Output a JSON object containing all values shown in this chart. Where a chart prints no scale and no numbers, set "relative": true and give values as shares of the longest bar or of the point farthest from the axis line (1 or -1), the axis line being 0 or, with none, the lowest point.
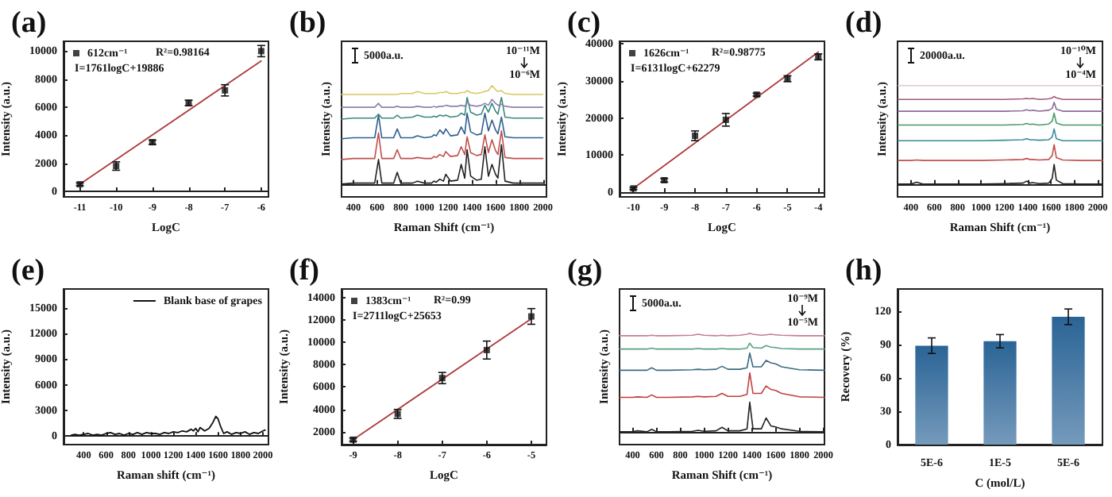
{
  "chart_data": [
    {
      "type": "scatter",
      "title": "(a)",
      "xlabel": "LogC",
      "ylabel": "Intensity (a.u.)",
      "x": [
        -11,
        -10,
        -9,
        -8,
        -7,
        -6
      ],
      "xlim": [
        -11.45,
        -5.8
      ],
      "xticks": [
        -11,
        -10,
        -9,
        -8,
        -7,
        -6
      ],
      "ylim": [
        -400,
        10700
      ],
      "yticks": [
        0,
        2000,
        4000,
        6000,
        8000,
        10000
      ],
      "legend": "top left",
      "marker": "square",
      "annotations": [
        "R²=0.98164",
        "I=1761logC+19886"
      ],
      "series": [
        {
          "name": "612cm⁻¹",
          "color": "#111111",
          "values": [
            500,
            1800,
            3500,
            6300,
            7200,
            10000
          ],
          "errors": [
            100,
            300,
            150,
            200,
            400,
            400
          ]
        },
        {
          "type": "line",
          "marker": "none",
          "color": "#b03a3a",
          "x": [
            -11,
            -6
          ],
          "values": [
            500,
            9300
          ]
        }
      ]
    },
    {
      "type": "line",
      "title": "(b)",
      "xlabel": "Raman Shift (cm⁻¹)",
      "ylabel": "Intensity (a.u.)",
      "relative": true,
      "xlim": [
        300,
        2030
      ],
      "xticks": [
        400,
        600,
        800,
        1000,
        1200,
        1400,
        1600,
        1800,
        2000
      ],
      "annotations": [
        "5000a.u.",
        "10⁻¹¹M",
        "10⁻⁶M"
      ],
      "x": [
        300,
        400,
        500,
        580,
        612,
        640,
        740,
        770,
        800,
        900,
        940,
        1000,
        1060,
        1080,
        1100,
        1130,
        1160,
        1180,
        1220,
        1280,
        1310,
        1340,
        1360,
        1390,
        1440,
        1480,
        1510,
        1540,
        1570,
        1600,
        1620,
        1650,
        1680,
        1750,
        1850,
        2000
      ],
      "series": [
        {
          "color": "#222222",
          "values": [
            0,
            0.01,
            0.01,
            0.01,
            0.25,
            0.01,
            0.01,
            0.12,
            0.01,
            0.01,
            0.03,
            0.01,
            0.01,
            0.03,
            0.02,
            0.05,
            0.03,
            0.1,
            0.03,
            0.04,
            0.2,
            0.06,
            0.35,
            0.08,
            0.04,
            0.05,
            0.38,
            0.08,
            0.2,
            0.1,
            0.06,
            0.4,
            0.03,
            0.01,
            0.01,
            0.01
          ]
        },
        {
          "color": "#c0504d",
          "values": [
            0.25,
            0.26,
            0.26,
            0.26,
            0.52,
            0.26,
            0.26,
            0.35,
            0.26,
            0.26,
            0.27,
            0.26,
            0.26,
            0.28,
            0.27,
            0.3,
            0.28,
            0.33,
            0.28,
            0.29,
            0.38,
            0.3,
            0.48,
            0.32,
            0.29,
            0.3,
            0.5,
            0.32,
            0.45,
            0.34,
            0.3,
            0.54,
            0.27,
            0.26,
            0.26,
            0.26
          ]
        },
        {
          "color": "#2f5f8f",
          "values": [
            0.46,
            0.47,
            0.47,
            0.47,
            0.7,
            0.47,
            0.47,
            0.56,
            0.47,
            0.47,
            0.49,
            0.47,
            0.48,
            0.5,
            0.49,
            0.55,
            0.51,
            0.56,
            0.49,
            0.5,
            0.58,
            0.51,
            0.72,
            0.53,
            0.5,
            0.51,
            0.72,
            0.54,
            0.65,
            0.55,
            0.51,
            0.68,
            0.48,
            0.47,
            0.47,
            0.47
          ]
        },
        {
          "color": "#3a8a80",
          "values": [
            0.66,
            0.67,
            0.67,
            0.67,
            0.71,
            0.67,
            0.67,
            0.7,
            0.67,
            0.68,
            0.7,
            0.68,
            0.68,
            0.69,
            0.68,
            0.7,
            0.69,
            0.7,
            0.68,
            0.69,
            0.72,
            0.7,
            0.88,
            0.73,
            0.7,
            0.71,
            0.8,
            0.73,
            0.82,
            0.74,
            0.71,
            0.88,
            0.68,
            0.67,
            0.67,
            0.67
          ]
        },
        {
          "color": "#9080b0",
          "values": [
            0.78,
            0.78,
            0.78,
            0.78,
            0.82,
            0.78,
            0.78,
            0.79,
            0.78,
            0.78,
            0.79,
            0.78,
            0.78,
            0.79,
            0.78,
            0.79,
            0.79,
            0.8,
            0.79,
            0.79,
            0.8,
            0.79,
            0.83,
            0.8,
            0.79,
            0.8,
            0.82,
            0.8,
            0.86,
            0.82,
            0.8,
            0.81,
            0.79,
            0.78,
            0.78,
            0.78
          ]
        },
        {
          "color": "#d8c860",
          "values": [
            0.91,
            0.91,
            0.91,
            0.91,
            0.91,
            0.91,
            0.91,
            0.91,
            0.92,
            0.92,
            0.94,
            0.92,
            0.92,
            0.92,
            0.92,
            0.93,
            0.93,
            0.94,
            0.92,
            0.92,
            0.93,
            0.93,
            0.95,
            0.93,
            0.92,
            0.93,
            0.94,
            0.95,
            1,
            0.96,
            0.94,
            0.95,
            0.92,
            0.91,
            0.91,
            0.91
          ]
        }
      ]
    },
    {
      "type": "scatter",
      "title": "(c)",
      "xlabel": "LogC",
      "ylabel": "Intensity (a.u.)",
      "x": [
        -10,
        -9,
        -8,
        -7,
        -6,
        -5,
        -4
      ],
      "xlim": [
        -10.45,
        -3.8
      ],
      "xticks": [
        -10,
        -9,
        -8,
        -7,
        -6,
        -5,
        -4
      ],
      "ylim": [
        -1300,
        40700
      ],
      "yticks": [
        0,
        10000,
        20000,
        30000,
        40000
      ],
      "legend": "top left",
      "marker": "square",
      "annotations": [
        "R²=0.98775",
        "I=6131logC+62279"
      ],
      "series": [
        {
          "name": "1626cm⁻¹",
          "color": "#111111",
          "values": [
            1000,
            3200,
            15200,
            19500,
            26300,
            30600,
            36500
          ],
          "errors": [
            300,
            500,
            1300,
            1700,
            400,
            800,
            800
          ]
        },
        {
          "type": "line",
          "marker": "none",
          "color": "#b03a3a",
          "x": [
            -10,
            -4
          ],
          "values": [
            1000,
            37800
          ]
        }
      ]
    },
    {
      "type": "line",
      "title": "(d)",
      "xlabel": "Raman Shift (cm⁻¹)",
      "ylabel": "Intensity (a.u.)",
      "relative": true,
      "xlim": [
        285,
        2040
      ],
      "xticks": [
        400,
        600,
        800,
        1000,
        1200,
        1400,
        1600,
        1800,
        2000
      ],
      "annotations": [
        "20000a.u.",
        "10⁻¹⁰M",
        "10⁻⁴M"
      ],
      "x": [
        290,
        400,
        450,
        500,
        600,
        800,
        1000,
        1200,
        1360,
        1390,
        1420,
        1440,
        1500,
        1580,
        1610,
        1626,
        1645,
        1700,
        1850,
        2040
      ],
      "series": [
        {
          "color": "#222222",
          "values": [
            0,
            0,
            0.02,
            0,
            0,
            0,
            0,
            0.005,
            0.01,
            0.03,
            0.01,
            0.015,
            0.005,
            0.01,
            0.06,
            0.2,
            0.04,
            0.005,
            0,
            0
          ]
        },
        {
          "color": "#c0504d",
          "values": [
            0.24,
            0.24,
            0.245,
            0.24,
            0.24,
            0.24,
            0.24,
            0.245,
            0.25,
            0.26,
            0.25,
            0.25,
            0.245,
            0.25,
            0.29,
            0.4,
            0.27,
            0.245,
            0.24,
            0.24
          ]
        },
        {
          "color": "#3a8a9a",
          "values": [
            0.44,
            0.44,
            0.44,
            0.44,
            0.44,
            0.44,
            0.44,
            0.445,
            0.45,
            0.46,
            0.45,
            0.45,
            0.445,
            0.45,
            0.48,
            0.56,
            0.46,
            0.44,
            0.44,
            0.44
          ]
        },
        {
          "color": "#4a9a6a",
          "values": [
            0.6,
            0.6,
            0.6,
            0.6,
            0.6,
            0.6,
            0.6,
            0.6,
            0.605,
            0.615,
            0.605,
            0.61,
            0.6,
            0.61,
            0.64,
            0.72,
            0.62,
            0.6,
            0.6,
            0.6
          ]
        },
        {
          "color": "#8a6a9a",
          "values": [
            0.74,
            0.74,
            0.74,
            0.74,
            0.74,
            0.74,
            0.74,
            0.74,
            0.745,
            0.755,
            0.745,
            0.75,
            0.74,
            0.75,
            0.77,
            0.83,
            0.76,
            0.74,
            0.74,
            0.74
          ]
        },
        {
          "color": "#a05a7a",
          "values": [
            0.86,
            0.86,
            0.86,
            0.86,
            0.86,
            0.86,
            0.86,
            0.86,
            0.865,
            0.87,
            0.865,
            0.87,
            0.86,
            0.865,
            0.875,
            0.89,
            0.875,
            0.86,
            0.86,
            0.86
          ]
        },
        {
          "color": "#e0c8d0",
          "values": [
            1,
            1,
            1,
            1,
            1,
            1,
            1,
            1,
            1,
            1,
            1,
            1,
            1,
            1,
            1,
            1,
            1,
            1,
            1,
            1
          ]
        }
      ]
    },
    {
      "type": "line",
      "title": "(e)",
      "xlabel": "Raman shift (cm⁻¹)",
      "ylabel": "Intensity (a.u.)",
      "xlim": [
        220,
        2050
      ],
      "xticks": [
        400,
        600,
        800,
        1000,
        1200,
        1400,
        1600,
        1800,
        2000
      ],
      "ylim": [
        -1000,
        17200
      ],
      "yticks": [
        0,
        3000,
        6000,
        9000,
        12000,
        15000
      ],
      "legend": "top right",
      "x": [
        290,
        320,
        360,
        400,
        440,
        480,
        520,
        560,
        600,
        640,
        680,
        720,
        760,
        800,
        840,
        880,
        920,
        960,
        1000,
        1040,
        1080,
        1120,
        1160,
        1200,
        1240,
        1280,
        1320,
        1360,
        1380,
        1400,
        1420,
        1440,
        1480,
        1520,
        1550,
        1580,
        1600,
        1620,
        1650,
        1680,
        1720,
        1760,
        1800,
        1840,
        1880,
        1920,
        1960,
        2000,
        2020
      ],
      "series": [
        {
          "name": "Blank base of grapes",
          "color": "#111111",
          "values": [
            100,
            200,
            100,
            200,
            300,
            100,
            200,
            100,
            300,
            400,
            200,
            300,
            100,
            300,
            200,
            400,
            200,
            400,
            300,
            300,
            200,
            400,
            300,
            500,
            400,
            600,
            500,
            800,
            600,
            900,
            500,
            1000,
            600,
            900,
            1500,
            2300,
            2000,
            1200,
            300,
            500,
            200,
            400,
            300,
            500,
            200,
            400,
            300,
            600,
            700
          ]
        }
      ]
    },
    {
      "type": "scatter",
      "title": "(f)",
      "xlabel": "LogC",
      "ylabel": "Intensity (a.u.)",
      "x": [
        -9,
        -8,
        -7,
        -6,
        -5
      ],
      "xlim": [
        -9.26,
        -4.66
      ],
      "xticks": [
        -9,
        -8,
        -7,
        -6,
        -5
      ],
      "ylim": [
        860,
        14750
      ],
      "yticks": [
        2000,
        4000,
        6000,
        8000,
        10000,
        12000,
        14000
      ],
      "legend": "top left",
      "marker": "square",
      "annotations": [
        "R²=0.99",
        "I=2711logC+25653"
      ],
      "series": [
        {
          "name": "1383cm⁻¹",
          "color": "#111111",
          "values": [
            1300,
            3600,
            6800,
            9300,
            12300
          ],
          "errors": [
            150,
            400,
            500,
            800,
            700
          ]
        },
        {
          "type": "line",
          "marker": "none",
          "color": "#b03a3a",
          "x": [
            -9,
            -5
          ],
          "values": [
            1300,
            12100
          ]
        }
      ]
    },
    {
      "type": "line",
      "title": "(g)",
      "xlabel": "Raman Shift (cm⁻¹)",
      "ylabel": "Intensity (a.u.)",
      "relative": true,
      "xlim": [
        290,
        2010
      ],
      "xticks": [
        400,
        600,
        800,
        1000,
        1200,
        1400,
        1600,
        1800,
        2000
      ],
      "annotations": [
        "5000a.u.",
        "10⁻⁹M",
        "10⁻⁵M"
      ],
      "x": [
        290,
        400,
        440,
        520,
        560,
        600,
        700,
        900,
        950,
        1000,
        1100,
        1150,
        1200,
        1300,
        1360,
        1383,
        1410,
        1480,
        1520,
        1560,
        1600,
        1650,
        1800,
        2010
      ],
      "series": [
        {
          "color": "#222222",
          "values": [
            0,
            0,
            0.01,
            0,
            0.025,
            0,
            0,
            0.005,
            0.015,
            0.005,
            0.01,
            0.045,
            0.01,
            0.01,
            0.03,
            0.3,
            0.03,
            0.03,
            0.14,
            0.06,
            0.05,
            0.03,
            0.005,
            0
          ]
        },
        {
          "color": "#c04040",
          "values": [
            0.35,
            0.35,
            0.355,
            0.35,
            0.375,
            0.35,
            0.35,
            0.355,
            0.36,
            0.355,
            0.36,
            0.39,
            0.36,
            0.36,
            0.38,
            0.6,
            0.39,
            0.39,
            0.465,
            0.43,
            0.42,
            0.39,
            0.355,
            0.35
          ]
        },
        {
          "color": "#3a6a80",
          "values": [
            0.625,
            0.625,
            0.625,
            0.625,
            0.65,
            0.625,
            0.625,
            0.63,
            0.635,
            0.63,
            0.635,
            0.665,
            0.635,
            0.635,
            0.65,
            0.8,
            0.66,
            0.66,
            0.725,
            0.7,
            0.69,
            0.66,
            0.63,
            0.625
          ]
        },
        {
          "color": "#5aa080",
          "values": [
            0.84,
            0.84,
            0.84,
            0.84,
            0.85,
            0.84,
            0.84,
            0.84,
            0.845,
            0.84,
            0.84,
            0.845,
            0.84,
            0.84,
            0.85,
            0.9,
            0.855,
            0.85,
            0.875,
            0.86,
            0.855,
            0.845,
            0.84,
            0.84
          ]
        },
        {
          "color": "#c08090",
          "values": [
            0.975,
            0.975,
            0.975,
            0.975,
            0.98,
            0.975,
            0.975,
            0.98,
            0.99,
            0.98,
            0.975,
            0.98,
            0.975,
            0.98,
            0.99,
            1,
            0.99,
            0.98,
            0.985,
            0.99,
            0.985,
            0.98,
            0.975,
            0.975
          ]
        }
      ]
    },
    {
      "type": "bar",
      "title": "(h)",
      "xlabel": "C (mol/L)",
      "ylabel": "Recovery (%)",
      "categories": [
        "5E-6",
        "1E-5",
        "5E-6"
      ],
      "ylim": [
        0,
        140
      ],
      "yticks": [
        0,
        30,
        60,
        90,
        120
      ],
      "series": [
        {
          "color": "#2a6496",
          "values": [
            89,
            93,
            115
          ],
          "errors": [
            7,
            6,
            7
          ]
        }
      ]
    }
  ]
}
